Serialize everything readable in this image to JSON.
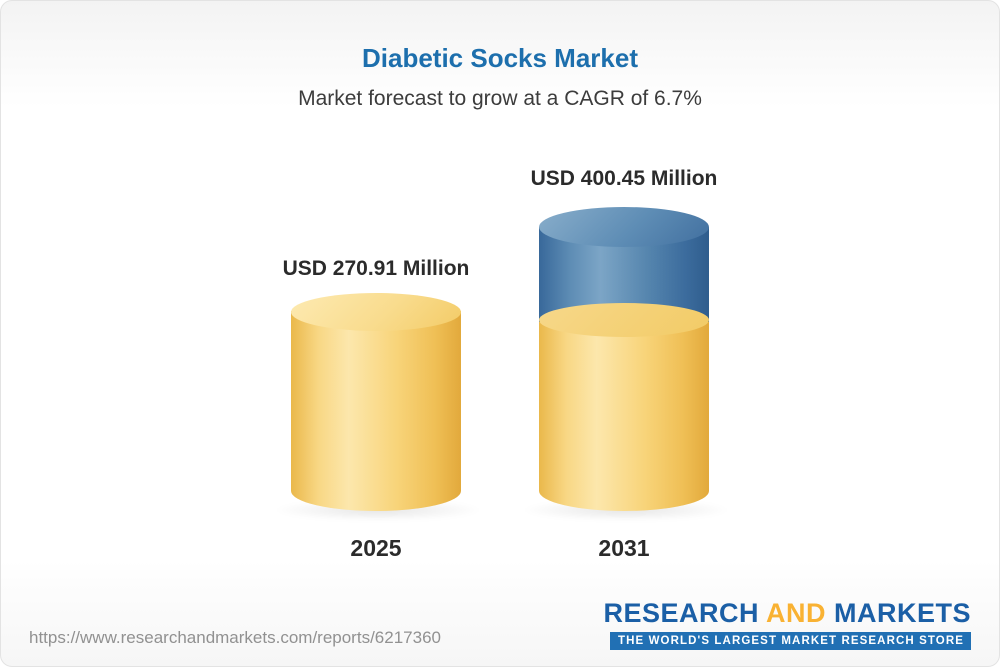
{
  "header": {
    "title": "Diabetic Socks Market",
    "subtitle": "Market forecast to grow at a CAGR of 6.7%"
  },
  "chart_data": {
    "type": "bar",
    "title": "Diabetic Socks Market",
    "subtitle": "Market forecast to grow at a CAGR of 6.7%",
    "unit": "USD Million",
    "cagr_percent": 6.7,
    "categories": [
      "2025",
      "2031"
    ],
    "values": [
      270.91,
      400.45
    ],
    "value_labels": [
      "USD 270.91 Million",
      "USD 400.45 Million"
    ],
    "bar_colors": [
      "#f6cf6e",
      "#f6cf6e+#39689a"
    ],
    "legend_position": "none",
    "grid": false
  },
  "footer": {
    "url": "https://www.researchandmarkets.com/reports/6217360",
    "logo": {
      "part1": "RESEARCH",
      "part2": "AND",
      "part3": "MARKETS",
      "tagline": "THE WORLD'S LARGEST MARKET RESEARCH STORE"
    }
  },
  "colors": {
    "title_blue": "#1d6fad",
    "bar_yellow": "#f6cf6e",
    "bar_blue": "#39689a",
    "logo_blue": "#1b5fa6",
    "logo_yellow": "#f9b233",
    "tagline_bg": "#2170b4",
    "url_gray": "#919191"
  }
}
